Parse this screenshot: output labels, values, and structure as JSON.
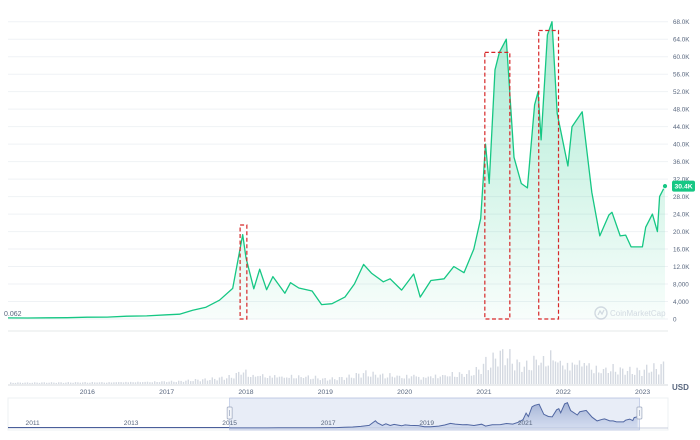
{
  "chart_data": [
    {
      "type": "area",
      "series": [
        {
          "color": "#16c784",
          "points": [
            [
              "2015-01-01",
              260
            ],
            [
              "2015-04-01",
              240
            ],
            [
              "2015-07-01",
              280
            ],
            [
              "2015-10-01",
              300
            ],
            [
              "2016-01-01",
              420
            ],
            [
              "2016-04-01",
              430
            ],
            [
              "2016-07-01",
              650
            ],
            [
              "2016-10-01",
              700
            ],
            [
              "2017-01-01",
              950
            ],
            [
              "2017-03-01",
              1100
            ],
            [
              "2017-05-01",
              2000
            ],
            [
              "2017-07-01",
              2700
            ],
            [
              "2017-09-01",
              4300
            ],
            [
              "2017-11-01",
              7000
            ],
            [
              "2017-12-01",
              15000
            ],
            [
              "2017-12-17",
              19300
            ],
            [
              "2018-01-01",
              14000
            ],
            [
              "2018-02-06",
              6900
            ],
            [
              "2018-03-05",
              11400
            ],
            [
              "2018-04-06",
              6700
            ],
            [
              "2018-05-05",
              9700
            ],
            [
              "2018-06-29",
              5900
            ],
            [
              "2018-07-25",
              8300
            ],
            [
              "2018-09-01",
              7100
            ],
            [
              "2018-11-01",
              6400
            ],
            [
              "2018-12-15",
              3300
            ],
            [
              "2019-02-01",
              3500
            ],
            [
              "2019-04-01",
              5000
            ],
            [
              "2019-05-15",
              8000
            ],
            [
              "2019-06-26",
              12500
            ],
            [
              "2019-08-01",
              10500
            ],
            [
              "2019-09-25",
              8500
            ],
            [
              "2019-10-26",
              9200
            ],
            [
              "2019-12-18",
              6600
            ],
            [
              "2020-02-12",
              10300
            ],
            [
              "2020-03-13",
              5000
            ],
            [
              "2020-05-01",
              8800
            ],
            [
              "2020-07-01",
              9200
            ],
            [
              "2020-08-15",
              12000
            ],
            [
              "2020-10-01",
              10600
            ],
            [
              "2020-11-15",
              16000
            ],
            [
              "2020-12-17",
              23000
            ],
            [
              "2021-01-08",
              40000
            ],
            [
              "2021-01-25",
              31000
            ],
            [
              "2021-02-21",
              57000
            ],
            [
              "2021-03-13",
              61000
            ],
            [
              "2021-04-14",
              64000
            ],
            [
              "2021-05-19",
              37000
            ],
            [
              "2021-06-22",
              31000
            ],
            [
              "2021-07-20",
              30000
            ],
            [
              "2021-08-22",
              49000
            ],
            [
              "2021-09-07",
              52000
            ],
            [
              "2021-09-21",
              41000
            ],
            [
              "2021-10-20",
              65000
            ],
            [
              "2021-11-10",
              68000
            ],
            [
              "2021-12-04",
              47000
            ],
            [
              "2022-01-22",
              35000
            ],
            [
              "2022-02-10",
              44000
            ],
            [
              "2022-03-29",
              47400
            ],
            [
              "2022-05-12",
              29000
            ],
            [
              "2022-06-18",
              19000
            ],
            [
              "2022-07-30",
              23800
            ],
            [
              "2022-08-13",
              24400
            ],
            [
              "2022-09-20",
              19000
            ],
            [
              "2022-10-15",
              19200
            ],
            [
              "2022-11-09",
              16500
            ],
            [
              "2022-12-31",
              16500
            ],
            [
              "2023-01-15",
              21000
            ],
            [
              "2023-02-15",
              24000
            ],
            [
              "2023-03-10",
              20000
            ],
            [
              "2023-03-20",
              28000
            ],
            [
              "2023-04-14",
              30400
            ]
          ]
        }
      ],
      "x_tick_labels": [
        "2016",
        "2017",
        "2018",
        "2019",
        "2020",
        "2021",
        "2022",
        "2023"
      ],
      "y_tick_labels": [
        "0",
        "4,000",
        "8,000",
        "12.0K",
        "16.0K",
        "20.0K",
        "24.0K",
        "28.0K",
        "32.0K",
        "36.0K",
        "40.0K",
        "44.0K",
        "48.0K",
        "52.0K",
        "56.0K",
        "60.0K",
        "64.0K",
        "68.0K"
      ],
      "y_ticks": [
        0,
        4000,
        8000,
        12000,
        16000,
        20000,
        24000,
        28000,
        32000,
        36000,
        40000,
        44000,
        48000,
        52000,
        56000,
        60000,
        64000,
        68000
      ],
      "ylim": [
        0,
        70000
      ],
      "start_label": "0.062",
      "current_price_label": "30.4K",
      "currency_label": "USD",
      "watermark": "CoinMarketCap",
      "volume_bars": true,
      "highlight_boxes": [
        {
          "x": [
            "2017-12-05",
            "2018-01-05"
          ],
          "y": [
            0,
            21500
          ]
        },
        {
          "x": [
            "2021-01-05",
            "2021-04-30"
          ],
          "y": [
            0,
            61000
          ]
        },
        {
          "x": [
            "2021-09-10",
            "2021-12-10"
          ],
          "y": [
            0,
            66000
          ]
        }
      ]
    },
    {
      "type": "area",
      "x_tick_labels": [
        "2011",
        "2013",
        "2015",
        "2017",
        "2019",
        "2021"
      ]
    }
  ]
}
